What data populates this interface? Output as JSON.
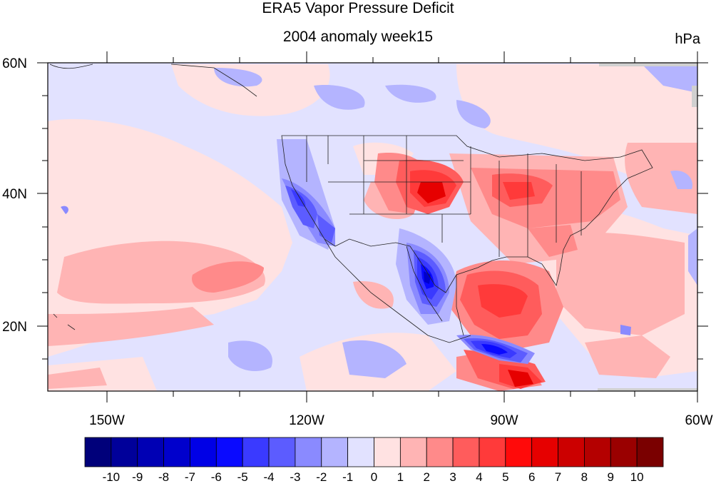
{
  "title": "ERA5 Vapor Pressure Deficit",
  "subtitle": "2004 anomaly week15",
  "units": "hPa",
  "lat_labels": [
    "60N",
    "40N",
    "20N"
  ],
  "lon_labels": [
    "150W",
    "120W",
    "90W",
    "60W"
  ],
  "colorbar": {
    "tick_labels": [
      "-10",
      "-9",
      "-8",
      "-7",
      "-6",
      "-5",
      "-4",
      "-3",
      "-2",
      "-1",
      "0",
      "1",
      "2",
      "3",
      "4",
      "5",
      "6",
      "7",
      "8",
      "9",
      "10"
    ],
    "colors": [
      "#00007a",
      "#00009a",
      "#0000b4",
      "#0000cc",
      "#0000e6",
      "#0a0aff",
      "#3a3aff",
      "#5c5cff",
      "#8a8aff",
      "#b4b4ff",
      "#e2e2ff",
      "#ffe2e2",
      "#ffb4b4",
      "#ff8a8a",
      "#ff5c5c",
      "#ff3a3a",
      "#ff0a0a",
      "#e60000",
      "#cc0000",
      "#b40000",
      "#9a0000",
      "#7a0000"
    ]
  },
  "map": {
    "background_anomaly_color": "#e2e2ff"
  }
}
